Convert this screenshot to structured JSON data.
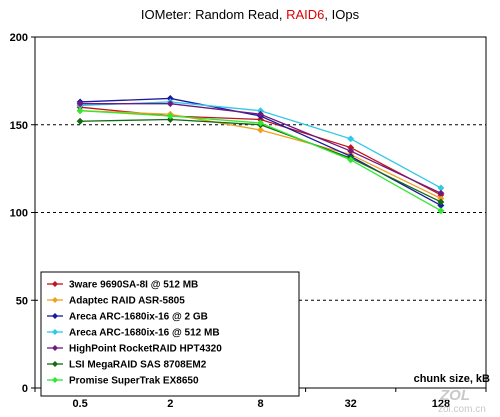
{
  "title": {
    "prefix": "IOMeter: Random Read, ",
    "highlight": "RAID6",
    "suffix": ", IOps",
    "highlight_color": "#e00000"
  },
  "watermark": {
    "brand": "ZOL",
    "site": "zol.com.cn"
  },
  "chart_data": {
    "type": "line",
    "title": "IOMeter: Random Read, RAID6, IOps",
    "xlabel": "chunk size, kB",
    "ylabel": "",
    "categories": [
      "0.5",
      "2",
      "8",
      "32",
      "128"
    ],
    "ylim": [
      0,
      200
    ],
    "yticks": [
      0,
      50,
      100,
      150,
      200
    ],
    "grid": "horizontal dashed",
    "legend_position": "bottom-left",
    "series": [
      {
        "name": "3ware 9690SA-8I @ 512 MB",
        "color": "#c0141e",
        "values": [
          160,
          155,
          153,
          137,
          110
        ]
      },
      {
        "name": "Adaptec RAID ASR-5805",
        "color": "#f0a020",
        "values": [
          158,
          156,
          147,
          133,
          108
        ]
      },
      {
        "name": "Areca ARC-1680ix-16 @ 2 GB",
        "color": "#1a1aa0",
        "values": [
          163,
          165,
          155,
          132,
          104
        ]
      },
      {
        "name": "Areca ARC-1680ix-16 @ 512 MB",
        "color": "#30c8e8",
        "values": [
          161,
          163,
          158,
          142,
          114
        ]
      },
      {
        "name": "HighPoint RocketRAID HPT4320",
        "color": "#701a80",
        "values": [
          162,
          162,
          156,
          135,
          111
        ]
      },
      {
        "name": "LSI MegaRAID SAS 8708EM2",
        "color": "#126a12",
        "values": [
          152,
          153,
          150,
          131,
          106
        ]
      },
      {
        "name": "Promise SuperTrak EX8650",
        "color": "#30e830",
        "values": [
          158,
          155,
          151,
          130,
          101
        ]
      }
    ]
  }
}
